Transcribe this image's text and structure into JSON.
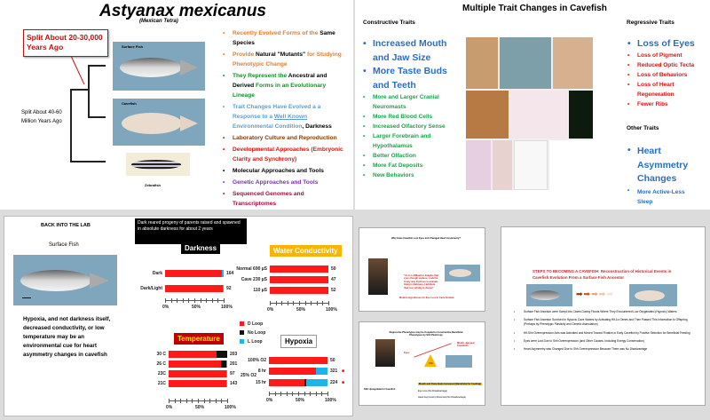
{
  "slide1": {
    "title": "Astyanax mexicanus",
    "subtitle": "(Mexican Tetra)",
    "callout": "Split About 20-30,000 Years Ago",
    "split_old": "Split About 40-60 Million Years Ago",
    "fish": [
      "Surface Fish",
      "Cavefish",
      "Zebrafish"
    ],
    "bullets": [
      {
        "parts": [
          {
            "t": "Recently Evolved Forms of the ",
            "c": "#e87d2b"
          },
          {
            "t": "Same Species",
            "c": "#000"
          }
        ],
        "bullet": "#e87d2b"
      },
      {
        "parts": [
          {
            "t": "Provide ",
            "c": "#e87d2b"
          },
          {
            "t": "Natural \"Mutants\" ",
            "c": "#000"
          },
          {
            "t": "for Studying Phenotypic Change",
            "c": "#e87d2b"
          }
        ],
        "bullet": "#e87d2b"
      },
      {
        "parts": [
          {
            "t": "They Represent the ",
            "c": "#1a8a2a"
          },
          {
            "t": "Ancestral and Derived ",
            "c": "#000"
          },
          {
            "t": "Forms in an Evolutionary Lineage",
            "c": "#1a8a2a"
          }
        ],
        "bullet": "#1a8a2a"
      },
      {
        "parts": [
          {
            "t": "Trait Changes Have Evolved a a Response to a ",
            "c": "#5aa0d6"
          },
          {
            "t": "Well Known",
            "c": "#5aa0d6",
            "u": true
          },
          {
            "t": " Environmental Condition",
            "c": "#5aa0d6"
          },
          {
            "t": ", Darkness",
            "c": "#000"
          }
        ],
        "bullet": "#5aa0d6"
      },
      {
        "parts": [
          {
            "t": "Laboratory Culture and Reproduction",
            "c": "#7a3b10"
          }
        ],
        "bullet": "#7a3b10"
      },
      {
        "parts": [
          {
            "t": "Developmental Approaches (Embryonic Clarity and Synchrony)",
            "c": "#e01010"
          }
        ],
        "bullet": "#e01010"
      },
      {
        "parts": [
          {
            "t": "Molecular Approaches and Tools",
            "c": "#000"
          }
        ],
        "bullet": "#000"
      },
      {
        "parts": [
          {
            "t": "Genetic Approaches and Tools",
            "c": "#7b2fc9"
          }
        ],
        "bullet": "#7b2fc9"
      },
      {
        "parts": [
          {
            "t": "Sequenced Genomes and Transcriptomes",
            "c": "#9b1040"
          }
        ],
        "bullet": "#9b1040"
      }
    ]
  },
  "slide2": {
    "title": "Multiple Trait Changes in Cavefish",
    "constructive_heading": "Constructive Traits",
    "constructive_large": [
      "Increased Mouth and Jaw Size",
      "More Taste Buds and Teeth"
    ],
    "constructive_small": [
      "More and Larger Cranial Neuromasts",
      "More Red Blood Cells",
      "Increased Olfactory Sense",
      "Larger Forebrain and Hypothalamus",
      "Better Olfaction",
      "More Fat Deposits",
      "New Behaviors"
    ],
    "regressive_heading": "Regressive Traits",
    "regressive_large": "Loss of Eyes",
    "regressive_small": [
      "Loss of Pigment",
      "Reduced Optic Tecta",
      "Loss of Behaviors",
      "Loss of Heart Regeneration",
      "Fewer Ribs"
    ],
    "other_heading": "Other Traits",
    "other_large": "Heart Asymmetry Changes",
    "other_small": "More Active-Less Sleep"
  },
  "slide3": {
    "heading": "BACK INTO THE LAB",
    "fish_label": "Surface Fish",
    "note": "Dark reared progeny of parents raised and spawned in absolute darkness for about 2 years",
    "conclusion": "Hypoxia, and not darkness itself, decreased conductivity, or low temperature may be an environmental cue for heart asymmetry changes in cavefish",
    "legend": [
      {
        "name": "D Loop",
        "color": "#ff1a1a"
      },
      {
        "name": "No Loop",
        "color": "#111111"
      },
      {
        "name": "L Loop",
        "color": "#1eb4ea"
      }
    ]
  },
  "chart_data": [
    {
      "type": "bar",
      "stacked": true,
      "orientation": "horizontal",
      "title": "Darkness",
      "categories": [
        "Dark",
        "Dark/Light"
      ],
      "n": [
        "164",
        "92"
      ],
      "series": [
        {
          "name": "D Loop",
          "values": [
            97,
            98
          ]
        },
        {
          "name": "No Loop",
          "values": [
            0,
            0
          ]
        },
        {
          "name": "L Loop",
          "values": [
            3,
            2
          ]
        }
      ],
      "xticks": [
        "0%",
        "50%",
        "100%"
      ],
      "xlim": [
        0,
        100
      ]
    },
    {
      "type": "bar",
      "stacked": true,
      "orientation": "horizontal",
      "title": "Water Conductivity",
      "categories": [
        "Normal 690 µS",
        "Cave 230 µS",
        "110 µS"
      ],
      "n": [
        "50",
        "47",
        "52"
      ],
      "series": [
        {
          "name": "D Loop",
          "values": [
            100,
            100,
            100
          ]
        },
        {
          "name": "No Loop",
          "values": [
            0,
            0,
            0
          ]
        },
        {
          "name": "L Loop",
          "values": [
            0,
            0,
            0
          ]
        }
      ],
      "xticks": [
        "0%",
        "50%",
        "100%"
      ],
      "xlim": [
        0,
        100
      ]
    },
    {
      "type": "bar",
      "stacked": true,
      "orientation": "horizontal",
      "title": "Temperature",
      "categories": [
        "30 C",
        "26 C",
        "23C",
        "21C"
      ],
      "n": [
        "203",
        "201",
        "97",
        "143"
      ],
      "series": [
        {
          "name": "D Loop",
          "values": [
            82,
            89,
            98,
            98
          ]
        },
        {
          "name": "No Loop",
          "values": [
            18,
            10,
            0,
            1
          ]
        },
        {
          "name": "L Loop",
          "values": [
            0,
            1,
            2,
            1
          ]
        }
      ],
      "xticks": [
        "0%",
        "50%",
        "100%"
      ],
      "xlim": [
        0,
        100
      ]
    },
    {
      "type": "bar",
      "stacked": true,
      "orientation": "horizontal",
      "title": "Hypoxia",
      "categories": [
        "100% O2",
        "8 hr",
        "15 hr"
      ],
      "group_label": "25% O2",
      "n": [
        "50",
        "321",
        "224"
      ],
      "significant": [
        false,
        true,
        true
      ],
      "series": [
        {
          "name": "D Loop",
          "values": [
            100,
            80,
            61
          ]
        },
        {
          "name": "No Loop",
          "values": [
            0,
            0,
            3
          ]
        },
        {
          "name": "L Loop",
          "values": [
            0,
            20,
            36
          ]
        }
      ],
      "xticks": [
        "0%",
        "50%",
        "100%"
      ],
      "xlim": [
        0,
        100
      ]
    }
  ],
  "mini1": {
    "title": "Why Have Cavefish Lost Eyes and Changed Heart Asymmetry?",
    "quote": "\"As it is difficult to imagine that eyes, though useless, could be in any way injurious to animals living in darkness, I attribute their loss wholly to disuse\"",
    "caption": "Modern Hypotheses for Eye Loss in Cave Animals"
  },
  "mini2": {
    "title": "Regressive Phenotypes may be Coupled to Constructive Beneficial Phenotypes by Shh Pleiotropy",
    "eyes": "Eyes",
    "mouth": "Mouth, Jaw and Tastebuds",
    "shh": "Shh",
    "box": "Mouth and Taste Buds Increased (Beneficial for Feeding)",
    "eye_loss": "Eye Loss (No Disadvantage)",
    "heart": "Heart Asymmetry Reversed (No Disadvantage)",
    "left": "Shh Upregulated in Cavefish"
  },
  "slide4": {
    "title": "STEPS TO BECOMING A CAVEFISH:  Reconstruction of Historical Events in Cavefish Evolution From a Surface Fish Ancestor",
    "bullets": [
      "Surface Fish Ancestor were Swept into Caves During Floods Where They Encountered Low Oxygenated (Hypoxic) Waters",
      "Surface Fish Ancestor Survived in Hypoxic Cave Waters by Activating Hif-1α Genes and Then Passed This Information to Offspring (Perhaps by Phenotypic Plasticity and Genetic Asimulation)",
      "Hif-Shh Overexpression Axis was Activated and Moved Toward Fixation in Early Cavefish by Positive Selection for Beneficial Feeding",
      "Eyes were Lost Due to Shh Overexpression (and Other Causes, Including Energy Conservation)",
      "Heart Asymmetry was Changed Due to Shh Overexpression Because There was No Disadvantage"
    ]
  }
}
